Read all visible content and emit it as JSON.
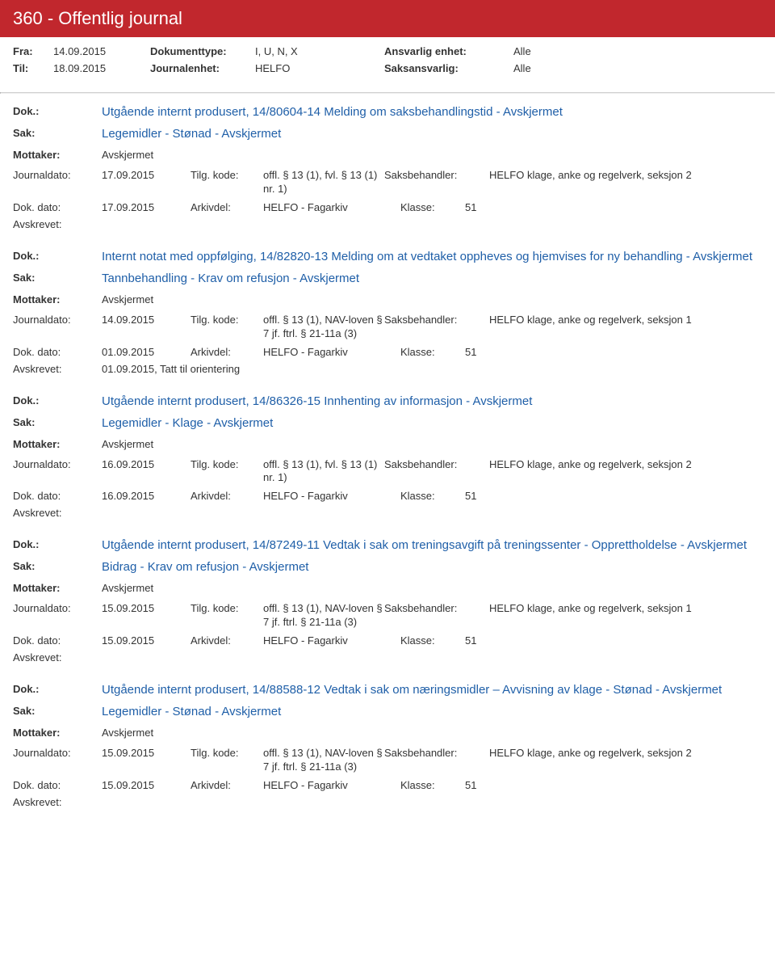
{
  "header": {
    "title": "360 - Offentlig journal",
    "fra_label": "Fra:",
    "til_label": "Til:",
    "fra_date": "14.09.2015",
    "til_date": "18.09.2015",
    "doktype_label": "Dokumenttype:",
    "doktype_val": "I, U, N, X",
    "journalenhet_label": "Journalenhet:",
    "journalenhet_val": "HELFO",
    "ansvarlig_label": "Ansvarlig enhet:",
    "ansvarlig_val": "Alle",
    "saksansvarlig_label": "Saksansvarlig:",
    "saksansvarlig_val": "Alle"
  },
  "labels": {
    "dok": "Dok.:",
    "sak": "Sak:",
    "mottaker": "Mottaker:",
    "journaldato": "Journaldato:",
    "tilgkode": "Tilg. kode:",
    "saksbehandler": "Saksbehandler:",
    "dokdato": "Dok. dato:",
    "arkivdel": "Arkivdel:",
    "klasse": "Klasse:",
    "avskrevet": "Avskrevet:"
  },
  "entries": [
    {
      "dok": "Utgående internt produsert, 14/80604-14 Melding om saksbehandlingstid - Avskjermet",
      "sak": "Legemidler - Stønad - Avskjermet",
      "mottaker": "Avskjermet",
      "journaldato": "17.09.2015",
      "tilgkode": "offl. § 13 (1), fvl. § 13 (1) nr. 1)",
      "handler": "HELFO klage, anke og regelverk, seksjon 2",
      "dokdato": "17.09.2015",
      "arkivdel": "HELFO - Fagarkiv",
      "klasse": "51",
      "avskrevet": ""
    },
    {
      "dok": "Internt notat med oppfølging, 14/82820-13 Melding om at vedtaket oppheves og hjemvises for ny behandling - Avskjermet",
      "sak": "Tannbehandling - Krav om refusjon - Avskjermet",
      "mottaker": "Avskjermet",
      "journaldato": "14.09.2015",
      "tilgkode": "offl. § 13 (1), NAV-loven § 7 jf. ftrl. § 21-11a (3)",
      "handler": "HELFO klage, anke og regelverk, seksjon 1",
      "dokdato": "01.09.2015",
      "arkivdel": "HELFO - Fagarkiv",
      "klasse": "51",
      "avskrevet": "01.09.2015, Tatt til orientering"
    },
    {
      "dok": "Utgående internt produsert, 14/86326-15 Innhenting av informasjon - Avskjermet",
      "sak": "Legemidler - Klage - Avskjermet",
      "mottaker": "Avskjermet",
      "journaldato": "16.09.2015",
      "tilgkode": "offl. § 13 (1), fvl. § 13 (1) nr. 1)",
      "handler": "HELFO klage, anke og regelverk, seksjon 2",
      "dokdato": "16.09.2015",
      "arkivdel": "HELFO - Fagarkiv",
      "klasse": "51",
      "avskrevet": ""
    },
    {
      "dok": "Utgående internt produsert, 14/87249-11 Vedtak i sak om treningsavgift på treningssenter - Opprettholdelse - Avskjermet",
      "sak": "Bidrag - Krav om refusjon - Avskjermet",
      "mottaker": "Avskjermet",
      "journaldato": "15.09.2015",
      "tilgkode": "offl. § 13 (1), NAV-loven § 7 jf. ftrl. § 21-11a (3)",
      "handler": "HELFO klage, anke og regelverk, seksjon 1",
      "dokdato": "15.09.2015",
      "arkivdel": "HELFO - Fagarkiv",
      "klasse": "51",
      "avskrevet": ""
    },
    {
      "dok": "Utgående internt produsert, 14/88588-12 Vedtak i sak om næringsmidler – Avvisning av klage - Stønad - Avskjermet",
      "sak": "Legemidler - Stønad - Avskjermet",
      "mottaker": "Avskjermet",
      "journaldato": "15.09.2015",
      "tilgkode": "offl. § 13 (1), NAV-loven § 7 jf. ftrl. § 21-11a (3)",
      "handler": "HELFO klage, anke og regelverk, seksjon 2",
      "dokdato": "15.09.2015",
      "arkivdel": "HELFO - Fagarkiv",
      "klasse": "51",
      "avskrevet": ""
    }
  ]
}
